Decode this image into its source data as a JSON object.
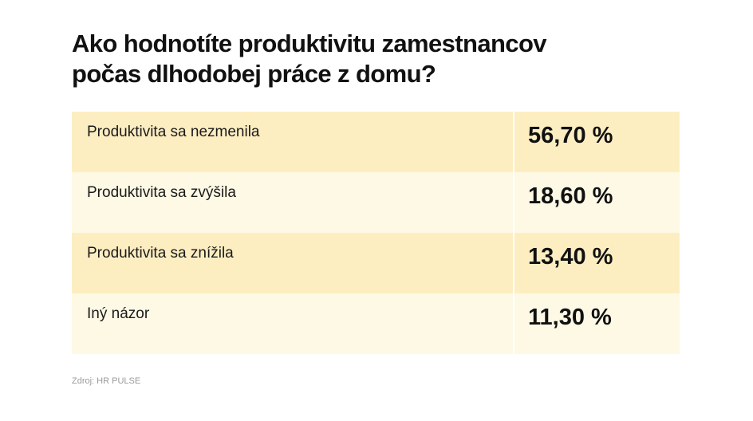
{
  "title": {
    "line1": "Ako hodnotíte produktivitu zamestnancov",
    "line2": "počas dlhodobej práce z domu?"
  },
  "source": "Zdroj: HR PULSE",
  "colors": {
    "row_dark": "#fdeec2",
    "row_light": "#fef9e5"
  },
  "chart_data": {
    "type": "table",
    "title": "Ako hodnotíte produktivitu zamestnancov počas dlhodobej práce z domu?",
    "rows": [
      {
        "label": "Produktivita sa nezmenila",
        "value": 56.7,
        "display": "56,70 %"
      },
      {
        "label": "Produktivita sa zvýšila",
        "value": 18.6,
        "display": "18,60 %"
      },
      {
        "label": "Produktivita sa znížila",
        "value": 13.4,
        "display": "13,40 %"
      },
      {
        "label": "Iný názor",
        "value": 11.3,
        "display": "11,30 %"
      }
    ]
  }
}
